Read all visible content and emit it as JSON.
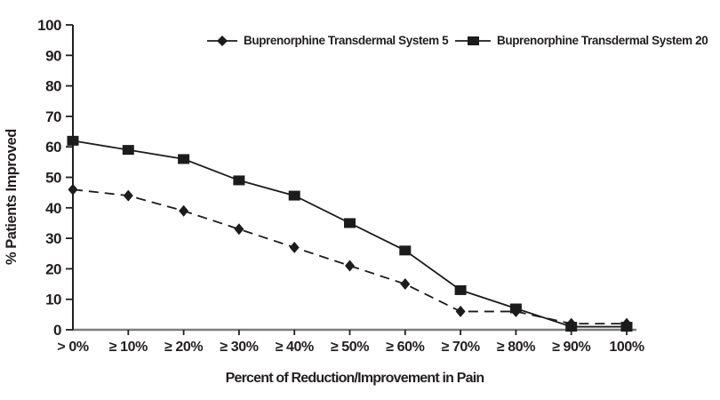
{
  "chart_data": {
    "type": "line",
    "title": "",
    "xlabel": "Percent of Reduction/Improvement in Pain",
    "ylabel": "% Patients Improved",
    "categories": [
      "> 0%",
      "≥ 10%",
      "≥ 20%",
      "≥ 30%",
      "≥ 40%",
      "≥ 50%",
      "≥ 60%",
      "≥ 70%",
      "≥ 80%",
      "≥ 90%",
      "100%"
    ],
    "ylim": [
      0,
      100
    ],
    "ytick_step": 10,
    "grid": false,
    "legend_position": "top",
    "series": [
      {
        "name": "Buprenorphine Transdermal System 5",
        "marker": "diamond",
        "line_style": "dashed",
        "color": "#1c1c1c",
        "values": [
          46,
          44,
          39,
          33,
          27,
          21,
          15,
          6,
          6,
          2,
          2
        ]
      },
      {
        "name": "Buprenorphine Transdermal System 20",
        "marker": "square",
        "line_style": "solid",
        "color": "#1c1c1c",
        "values": [
          62,
          59,
          56,
          49,
          44,
          35,
          26,
          13,
          7,
          1,
          1
        ]
      }
    ]
  },
  "colors": {
    "series": "#1c1c1c",
    "text": "#231f20",
    "y_axis": "#231f20",
    "x_axis": "#7d7d7d",
    "background": "#ffffff"
  }
}
